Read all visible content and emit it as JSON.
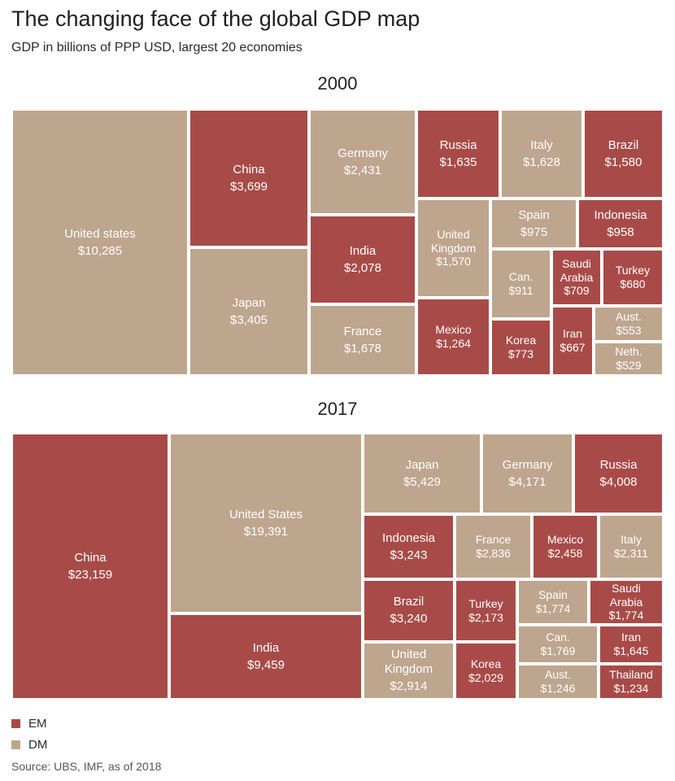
{
  "title": "The changing face of the global GDP map",
  "subtitle": "GDP in billions of PPP USD, largest 20 economies",
  "colors": {
    "EM": "#a84b48",
    "DM": "#bea58e"
  },
  "legend": [
    {
      "key": "EM",
      "label": "EM"
    },
    {
      "key": "DM",
      "label": "DM"
    }
  ],
  "source": "Source: UBS, IMF, as of 2018",
  "chart_data": [
    {
      "type": "treemap",
      "title": "2000",
      "unit": "billions of PPP USD",
      "items": [
        {
          "name": "United states",
          "label": "$10,285",
          "value": 10285,
          "group": "DM"
        },
        {
          "name": "China",
          "label": "$3,699",
          "value": 3699,
          "group": "EM"
        },
        {
          "name": "Japan",
          "label": "$3,405",
          "value": 3405,
          "group": "DM"
        },
        {
          "name": "Germany",
          "label": "$2,431",
          "value": 2431,
          "group": "DM"
        },
        {
          "name": "India",
          "label": "$2,078",
          "value": 2078,
          "group": "EM"
        },
        {
          "name": "France",
          "label": "$1,678",
          "value": 1678,
          "group": "DM"
        },
        {
          "name": "Russia",
          "label": "$1,635",
          "value": 1635,
          "group": "EM"
        },
        {
          "name": "Italy",
          "label": "$1,628",
          "value": 1628,
          "group": "DM"
        },
        {
          "name": "Brazil",
          "label": "$1,580",
          "value": 1580,
          "group": "EM"
        },
        {
          "name": "United\nKingdom",
          "label": "$1,570",
          "value": 1570,
          "group": "DM"
        },
        {
          "name": "Mexico",
          "label": "$1,264",
          "value": 1264,
          "group": "EM"
        },
        {
          "name": "Spain",
          "label": "$975",
          "value": 975,
          "group": "DM"
        },
        {
          "name": "Indonesia",
          "label": "$958",
          "value": 958,
          "group": "EM"
        },
        {
          "name": "Can.",
          "label": "$911",
          "value": 911,
          "group": "DM"
        },
        {
          "name": "Korea",
          "label": "$773",
          "value": 773,
          "group": "EM"
        },
        {
          "name": "Saudi\nArabia",
          "label": "$709",
          "value": 709,
          "group": "EM"
        },
        {
          "name": "Turkey",
          "label": "$680",
          "value": 680,
          "group": "EM"
        },
        {
          "name": "Iran",
          "label": "$667",
          "value": 667,
          "group": "EM"
        },
        {
          "name": "Aust.",
          "label": "$553",
          "value": 553,
          "group": "DM"
        },
        {
          "name": "Neth.",
          "label": "$529",
          "value": 529,
          "group": "DM"
        }
      ]
    },
    {
      "type": "treemap",
      "title": "2017",
      "unit": "billions of PPP USD",
      "items": [
        {
          "name": "China",
          "label": "$23,159",
          "value": 23159,
          "group": "EM"
        },
        {
          "name": "United States",
          "label": "$19,391",
          "value": 19391,
          "group": "DM"
        },
        {
          "name": "India",
          "label": "$9,459",
          "value": 9459,
          "group": "EM"
        },
        {
          "name": "Japan",
          "label": "$5,429",
          "value": 5429,
          "group": "DM"
        },
        {
          "name": "Germany",
          "label": "$4,171",
          "value": 4171,
          "group": "DM"
        },
        {
          "name": "Russia",
          "label": "$4,008",
          "value": 4008,
          "group": "EM"
        },
        {
          "name": "Indonesia",
          "label": "$3,243",
          "value": 3243,
          "group": "EM"
        },
        {
          "name": "Brazil",
          "label": "$3,240",
          "value": 3240,
          "group": "EM"
        },
        {
          "name": "United\nKingdom",
          "label": "$2,914",
          "value": 2914,
          "group": "DM"
        },
        {
          "name": "France",
          "label": "$2,836",
          "value": 2836,
          "group": "DM"
        },
        {
          "name": "Mexico",
          "label": "$2,458",
          "value": 2458,
          "group": "EM"
        },
        {
          "name": "Italy",
          "label": "$2,311",
          "value": 2311,
          "group": "DM"
        },
        {
          "name": "Turkey",
          "label": "$2,173",
          "value": 2173,
          "group": "EM"
        },
        {
          "name": "Korea",
          "label": "$2,029",
          "value": 2029,
          "group": "EM"
        },
        {
          "name": "Spain",
          "label": "$1,774",
          "value": 1774,
          "group": "DM"
        },
        {
          "name": "Saudi\nArabia",
          "label": "$1,774",
          "value": 1774,
          "group": "EM"
        },
        {
          "name": "Can.",
          "label": "$1,769",
          "value": 1769,
          "group": "DM"
        },
        {
          "name": "Iran",
          "label": "$1,645",
          "value": 1645,
          "group": "EM"
        },
        {
          "name": "Aust.",
          "label": "$1,246",
          "value": 1246,
          "group": "DM"
        },
        {
          "name": "Thailand",
          "label": "$1,234",
          "value": 1234,
          "group": "EM"
        }
      ]
    }
  ]
}
